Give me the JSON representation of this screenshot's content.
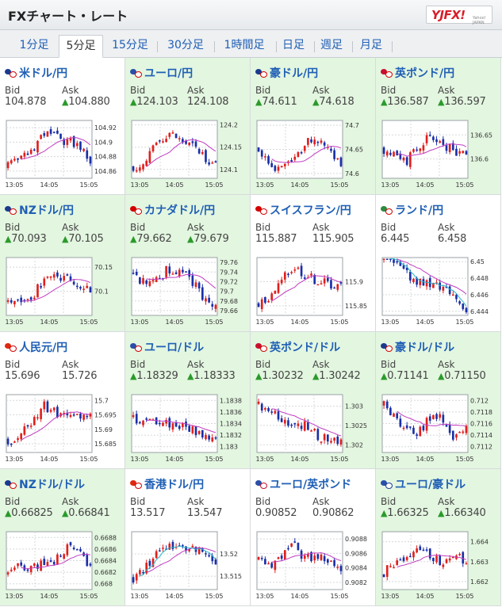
{
  "header": {
    "title": "FXチャート・レート",
    "logo_text": "YJFX!",
    "logo_sub": "Yahoo! JAPAN"
  },
  "tabs": [
    {
      "label": "1分足",
      "active": false
    },
    {
      "label": "5分足",
      "active": true
    },
    {
      "label": "15分足",
      "active": false
    },
    {
      "label": "30分足",
      "active": false
    },
    {
      "label": "1時間足",
      "active": false
    },
    {
      "label": "日足",
      "active": false
    },
    {
      "label": "週足",
      "active": false
    },
    {
      "label": "月足",
      "active": false
    }
  ],
  "labels": {
    "bid": "Bid",
    "ask": "Ask"
  },
  "colors": {
    "up_arrow": "#2b9a2b",
    "candle_up": "#e0201d",
    "candle_down": "#1a2fa8",
    "ma_purple": "#c13cc1",
    "ma_cyan": "#2ab7c8",
    "pair_link": "#1f5fb5",
    "cell_green": "#e3f6e0"
  },
  "x_ticks": [
    "13:05",
    "14:05",
    "15:05"
  ],
  "pairs": [
    {
      "name": "米ドル/円",
      "bid": "104.878",
      "ask": "104.880",
      "bid_up": false,
      "ask_up": true,
      "bg": "white",
      "y_ticks": [
        "104.92",
        "104.9",
        "104.88",
        "104.86"
      ],
      "range": [
        104.85,
        104.93
      ],
      "seed": 3,
      "shape": [
        0.2,
        0.3,
        0.5,
        0.8,
        0.7,
        0.65,
        0.6,
        0.3
      ]
    },
    {
      "name": "ユーロ/円",
      "bid": "124.103",
      "ask": "124.108",
      "bid_up": true,
      "ask_up": false,
      "bg": "green",
      "y_ticks": [
        "124.2",
        "124.15",
        "124.1"
      ],
      "range": [
        124.08,
        124.21
      ],
      "seed": 7,
      "shape": [
        0.2,
        0.25,
        0.6,
        0.8,
        0.65,
        0.55,
        0.4,
        0.2
      ]
    },
    {
      "name": "豪ドル/円",
      "bid": "74.611",
      "ask": "74.618",
      "bid_up": true,
      "ask_up": true,
      "bg": "green",
      "y_ticks": [
        "74.7",
        "74.65",
        "74.6"
      ],
      "range": [
        74.59,
        74.71
      ],
      "seed": 11,
      "shape": [
        0.5,
        0.25,
        0.15,
        0.3,
        0.6,
        0.7,
        0.45,
        0.2
      ]
    },
    {
      "name": "英ポンド/円",
      "bid": "136.587",
      "ask": "136.597",
      "bid_up": true,
      "ask_up": true,
      "bg": "green",
      "y_ticks": [
        "136.65",
        "136.6"
      ],
      "range": [
        136.56,
        136.68
      ],
      "seed": 17,
      "shape": [
        0.5,
        0.45,
        0.3,
        0.55,
        0.75,
        0.6,
        0.45,
        0.5
      ]
    },
    {
      "name": "NZドル/円",
      "bid": "70.093",
      "ask": "70.105",
      "bid_up": true,
      "ask_up": true,
      "bg": "green",
      "y_ticks": [
        "70.15",
        "70.1"
      ],
      "range": [
        70.05,
        70.17
      ],
      "seed": 23,
      "shape": [
        0.2,
        0.25,
        0.3,
        0.6,
        0.7,
        0.65,
        0.5,
        0.4
      ]
    },
    {
      "name": "カナダドル/円",
      "bid": "79.662",
      "ask": "79.679",
      "bid_up": true,
      "ask_up": true,
      "bg": "green",
      "y_ticks": [
        "79.76",
        "79.74",
        "79.72",
        "79.7",
        "79.68",
        "79.66"
      ],
      "range": [
        79.65,
        79.77
      ],
      "seed": 29,
      "shape": [
        0.7,
        0.55,
        0.65,
        0.8,
        0.75,
        0.6,
        0.3,
        0.1
      ]
    },
    {
      "name": "スイスフラン/円",
      "bid": "115.887",
      "ask": "115.905",
      "bid_up": false,
      "ask_up": false,
      "bg": "white",
      "y_ticks": [
        "115.9",
        "115.85"
      ],
      "range": [
        115.83,
        115.95
      ],
      "seed": 31,
      "shape": [
        0.2,
        0.3,
        0.6,
        0.85,
        0.7,
        0.6,
        0.55,
        0.5
      ]
    },
    {
      "name": "ランド/円",
      "bid": "6.445",
      "ask": "6.458",
      "bid_up": false,
      "ask_up": false,
      "bg": "white",
      "y_ticks": [
        "6.45",
        "6.448",
        "6.446",
        "6.444"
      ],
      "range": [
        6.4435,
        6.4505
      ],
      "seed": 37,
      "shape": [
        0.95,
        0.9,
        0.7,
        0.6,
        0.55,
        0.5,
        0.35,
        0.1
      ]
    },
    {
      "name": "人民元/円",
      "bid": "15.696",
      "ask": "15.726",
      "bid_up": false,
      "ask_up": false,
      "bg": "white",
      "y_ticks": [
        "15.7",
        "15.695",
        "15.69",
        "15.685"
      ],
      "range": [
        15.682,
        15.702
      ],
      "seed": 41,
      "shape": [
        0.2,
        0.3,
        0.55,
        0.8,
        0.7,
        0.6,
        0.65,
        0.6
      ]
    },
    {
      "name": "ユーロ/ドル",
      "bid": "1.18329",
      "ask": "1.18333",
      "bid_up": true,
      "ask_up": true,
      "bg": "green",
      "y_ticks": [
        "1.1838",
        "1.1836",
        "1.1834",
        "1.1832",
        "1.183"
      ],
      "range": [
        1.1829,
        1.1839
      ],
      "seed": 43,
      "shape": [
        0.6,
        0.5,
        0.55,
        0.5,
        0.45,
        0.4,
        0.3,
        0.2
      ]
    },
    {
      "name": "英ポンド/ドル",
      "bid": "1.30232",
      "ask": "1.30242",
      "bid_up": true,
      "ask_up": true,
      "bg": "green",
      "y_ticks": [
        "1.303",
        "1.3025",
        "1.302"
      ],
      "range": [
        1.3018,
        1.3033
      ],
      "seed": 47,
      "shape": [
        0.8,
        0.7,
        0.55,
        0.5,
        0.45,
        0.3,
        0.2,
        0.25
      ]
    },
    {
      "name": "豪ドル/ドル",
      "bid": "0.71141",
      "ask": "0.71150",
      "bid_up": true,
      "ask_up": true,
      "bg": "green",
      "y_ticks": [
        "0.712",
        "0.7118",
        "0.7116",
        "0.7114",
        "0.7112"
      ],
      "range": [
        0.7111,
        0.7121
      ],
      "seed": 53,
      "shape": [
        0.85,
        0.6,
        0.4,
        0.35,
        0.65,
        0.55,
        0.25,
        0.4
      ]
    },
    {
      "name": "NZドル/ドル",
      "bid": "0.66825",
      "ask": "0.66841",
      "bid_up": true,
      "ask_up": true,
      "bg": "green",
      "y_ticks": [
        "0.6688",
        "0.6686",
        "0.6684",
        "0.6682",
        "0.668"
      ],
      "range": [
        0.6679,
        0.6689
      ],
      "seed": 59,
      "shape": [
        0.3,
        0.4,
        0.35,
        0.45,
        0.5,
        0.75,
        0.6,
        0.45
      ]
    },
    {
      "name": "香港ドル/円",
      "bid": "13.517",
      "ask": "13.547",
      "bid_up": false,
      "ask_up": false,
      "bg": "white",
      "y_ticks": [
        "13.52",
        "13.515"
      ],
      "range": [
        13.512,
        13.525
      ],
      "seed": 61,
      "shape": [
        0.2,
        0.35,
        0.6,
        0.8,
        0.75,
        0.7,
        0.65,
        0.5
      ]
    },
    {
      "name": "ユーロ/英ポンド",
      "bid": "0.90852",
      "ask": "0.90862",
      "bid_up": false,
      "ask_up": false,
      "bg": "white",
      "y_ticks": [
        "0.9088",
        "0.9086",
        "0.9084",
        "0.9082"
      ],
      "range": [
        0.9081,
        0.9089
      ],
      "seed": 67,
      "shape": [
        0.5,
        0.45,
        0.6,
        0.75,
        0.55,
        0.6,
        0.5,
        0.3
      ]
    },
    {
      "name": "ユーロ/豪ドル",
      "bid": "1.66325",
      "ask": "1.66340",
      "bid_up": true,
      "ask_up": true,
      "bg": "green",
      "y_ticks": [
        "1.664",
        "1.663",
        "1.662"
      ],
      "range": [
        1.6616,
        1.6645
      ],
      "seed": 71,
      "shape": [
        0.3,
        0.45,
        0.6,
        0.75,
        0.55,
        0.45,
        0.6,
        0.5
      ]
    }
  ],
  "flag_colors": [
    [
      "#1a3a8f",
      "#d40000"
    ],
    [
      "#2a4fa8",
      "#d40000"
    ],
    [
      "#1a3a8f",
      "#d40000"
    ],
    [
      "#c8102e",
      "#d40000"
    ],
    [
      "#1a3a8f",
      "#d40000"
    ],
    [
      "#d40000",
      "#d40000"
    ],
    [
      "#d40000",
      "#d40000"
    ],
    [
      "#2d8a3e",
      "#d40000"
    ],
    [
      "#de2910",
      "#d40000"
    ],
    [
      "#2a4fa8",
      "#d40000"
    ],
    [
      "#c8102e",
      "#d40000"
    ],
    [
      "#1a3a8f",
      "#d40000"
    ],
    [
      "#1a3a8f",
      "#d40000"
    ],
    [
      "#de2910",
      "#d40000"
    ],
    [
      "#2a4fa8",
      "#c8102e"
    ],
    [
      "#2a4fa8",
      "#1a3a8f"
    ]
  ]
}
